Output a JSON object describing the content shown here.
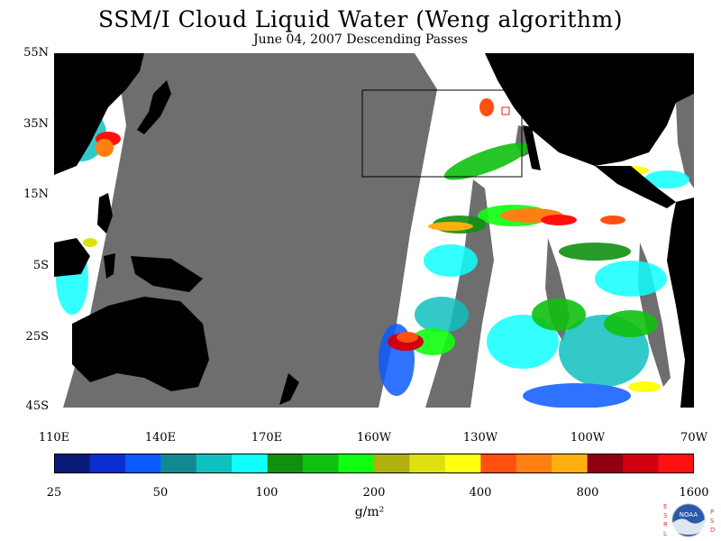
{
  "title": "SSM/I Cloud Liquid Water (Weng algorithm)",
  "subtitle": "June 04, 2007  Descending Passes",
  "lat_labels": [
    "55N",
    "35N",
    "15N",
    "5S",
    "25S",
    "45S"
  ],
  "lon_labels": [
    "110E",
    "140E",
    "170E",
    "160W",
    "130W",
    "100W",
    "70W"
  ],
  "colorbar": {
    "colors": [
      "#0a1a78",
      "#0a2ed0",
      "#0a5aff",
      "#108a90",
      "#10c0c0",
      "#10ffff",
      "#109010",
      "#10c010",
      "#10ff10",
      "#b0b010",
      "#e0e010",
      "#ffff10",
      "#ff5010",
      "#ff8010",
      "#ffb010",
      "#900010",
      "#d00010",
      "#ff1010"
    ],
    "labels": [
      "25",
      "50",
      "100",
      "200",
      "400",
      "800",
      "1600"
    ]
  },
  "units": "g/m²",
  "logo": {
    "text": "NOAA",
    "left_letters": [
      "E",
      "S",
      "R",
      "L"
    ],
    "right_letters": [
      "P",
      "S",
      "D"
    ]
  },
  "colors": {
    "ocean_gap": "#6e6e6e",
    "land": "#000000",
    "clear": "#ffffff"
  }
}
